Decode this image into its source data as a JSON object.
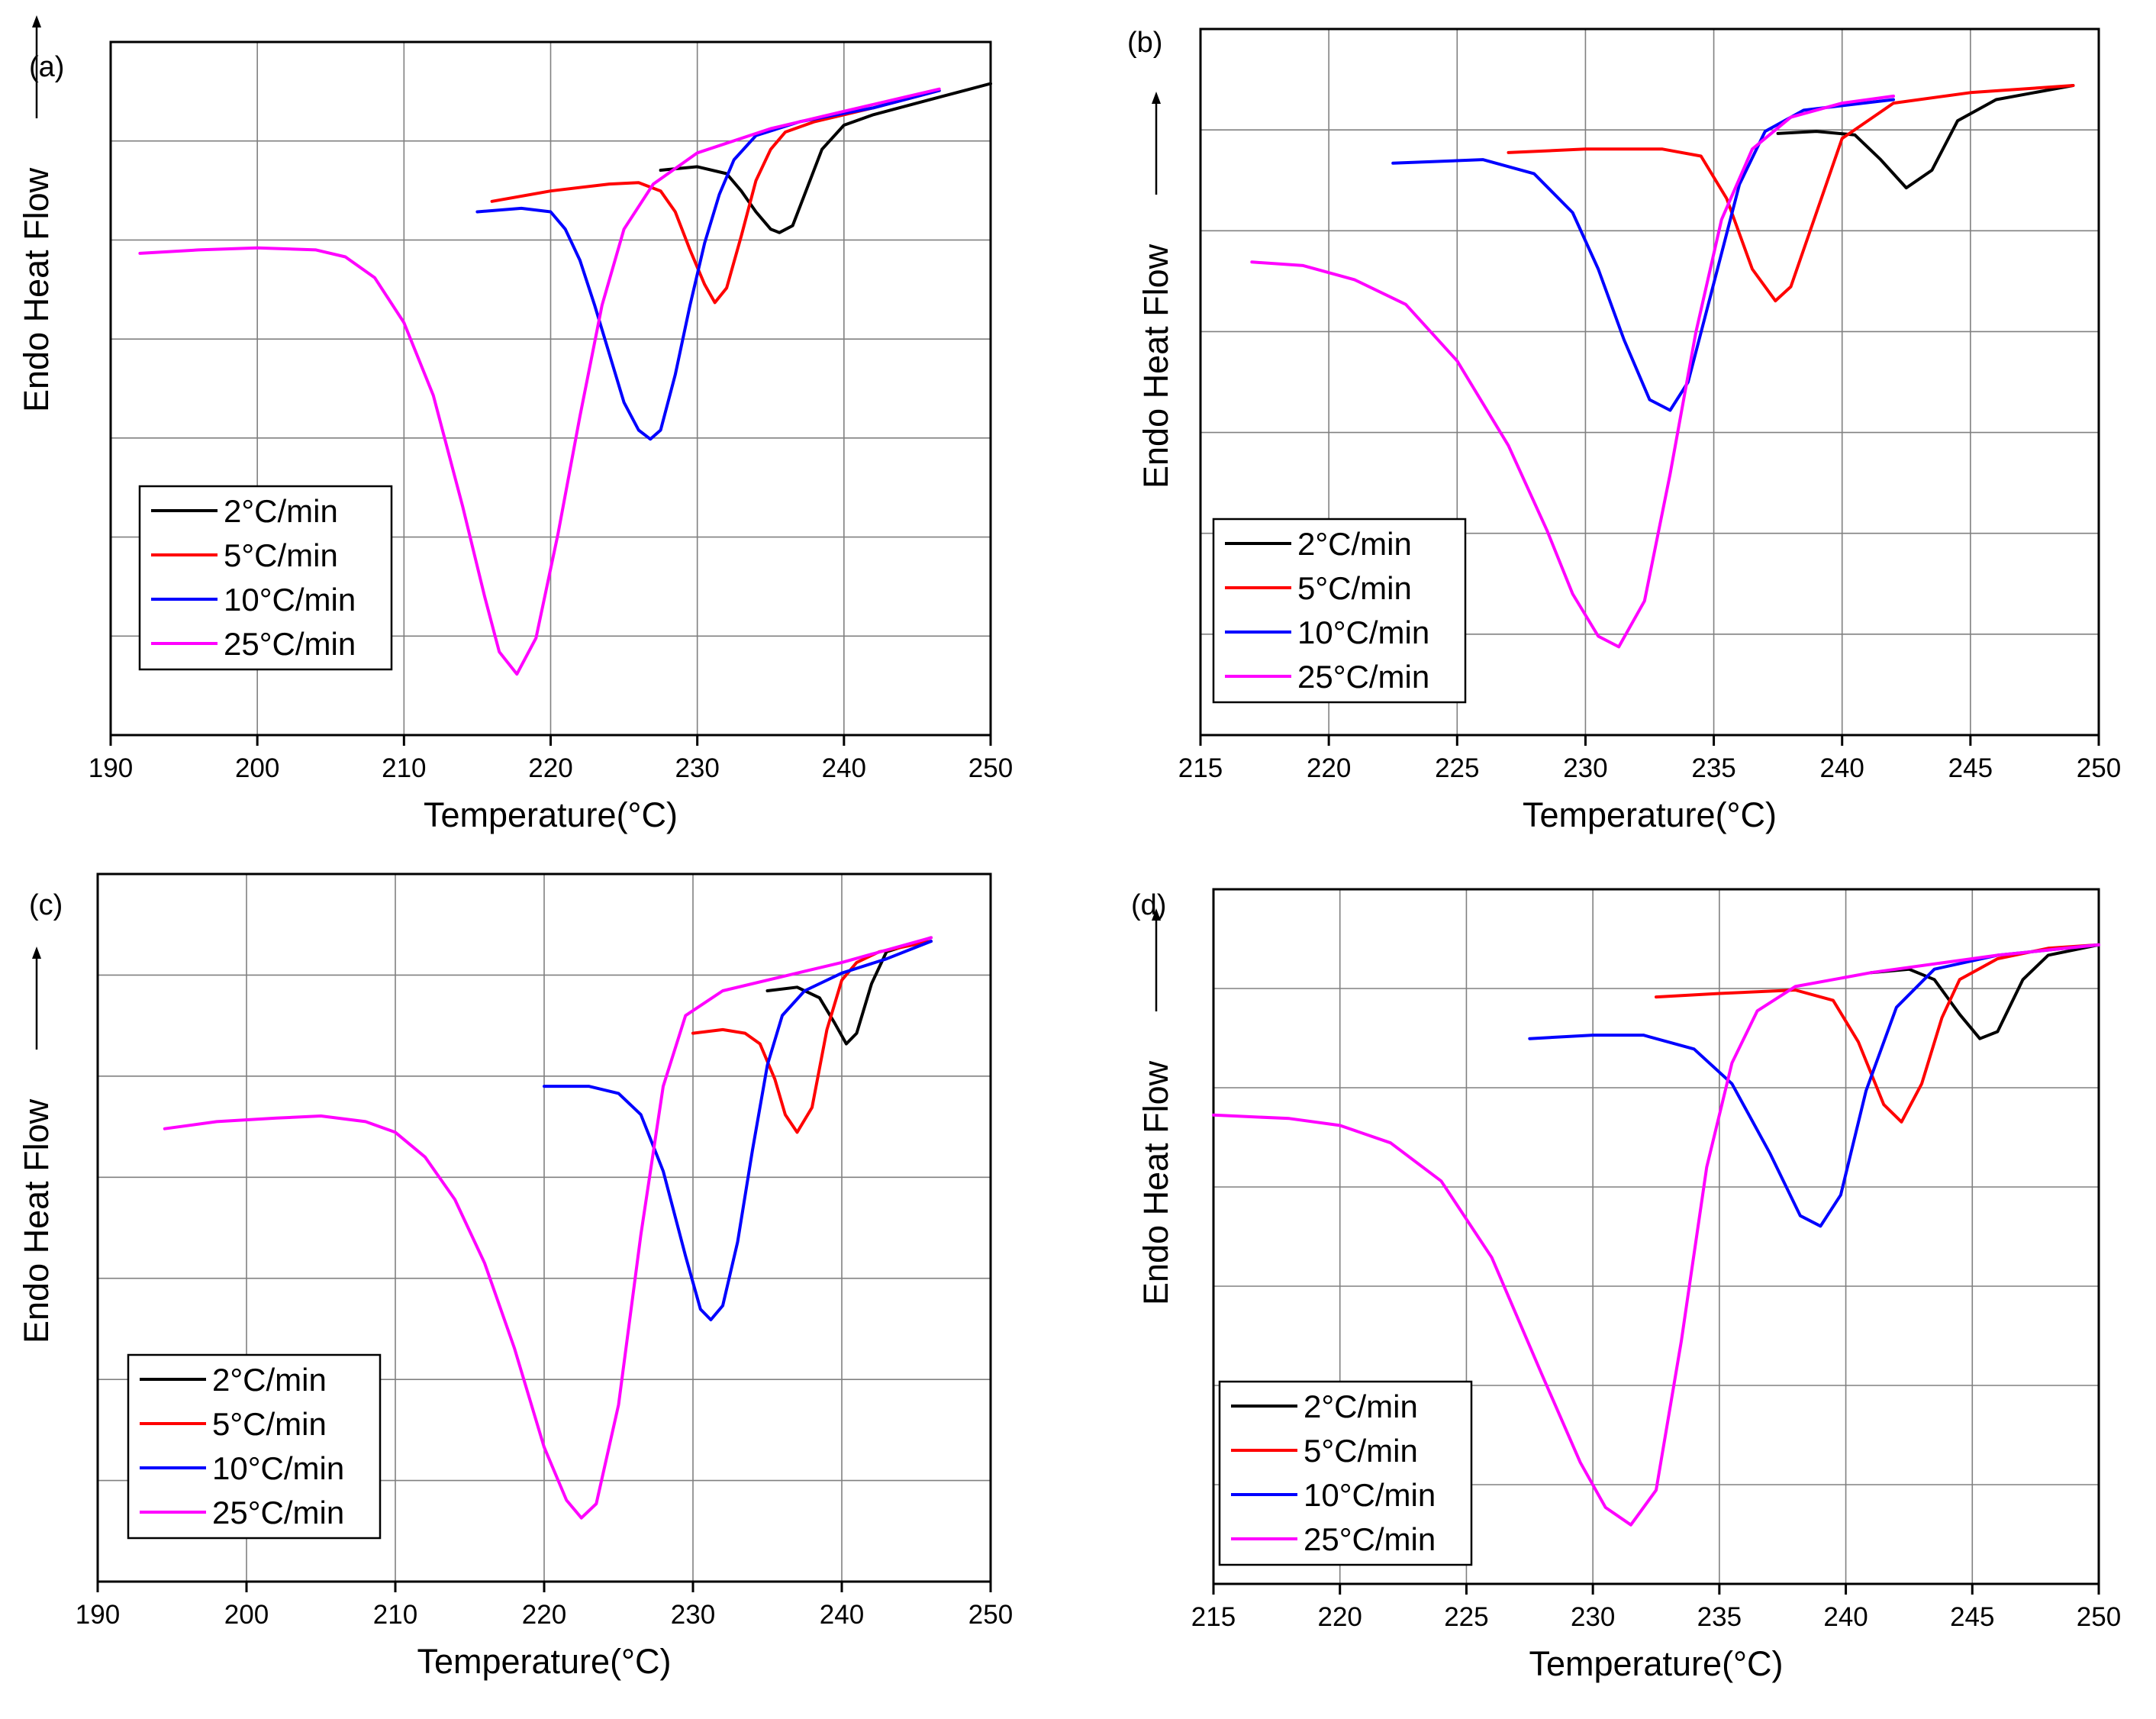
{
  "chart_data": [
    {
      "type": "line",
      "panel": "(a)",
      "xlabel": "Temperature(°C)",
      "ylabel": "Endo Heat Flow",
      "xlim": [
        190,
        250
      ],
      "ylim": [
        0,
        1
      ],
      "x_ticks": [
        190,
        200,
        210,
        220,
        230,
        240,
        250
      ],
      "grid": true,
      "legend_position": "bottom-left",
      "series": [
        {
          "name": "2°C/min",
          "color": "#000000",
          "x": [
            227.5,
            230,
            232,
            233,
            234,
            235,
            235.6,
            236.5,
            237.5,
            238.5,
            240,
            242,
            245,
            250
          ],
          "y": [
            0.815,
            0.82,
            0.81,
            0.785,
            0.755,
            0.73,
            0.725,
            0.735,
            0.79,
            0.845,
            0.88,
            0.895,
            0.912,
            0.94
          ]
        },
        {
          "name": "5°C/min",
          "color": "#ff0000",
          "x": [
            216,
            220,
            224,
            226,
            227.5,
            228.5,
            229.5,
            230.5,
            231.2,
            232,
            233,
            234,
            235,
            236,
            238,
            242,
            246.5
          ],
          "y": [
            0.77,
            0.785,
            0.795,
            0.797,
            0.785,
            0.755,
            0.7,
            0.65,
            0.624,
            0.645,
            0.72,
            0.8,
            0.845,
            0.87,
            0.885,
            0.905,
            0.93
          ]
        },
        {
          "name": "10°C/min",
          "color": "#0000ff",
          "x": [
            215,
            218,
            220,
            221,
            222,
            223,
            224,
            225,
            226,
            226.8,
            227.5,
            228.5,
            229.5,
            230.5,
            231.5,
            232.5,
            234,
            237,
            242,
            246.5
          ],
          "y": [
            0.755,
            0.76,
            0.755,
            0.73,
            0.685,
            0.62,
            0.55,
            0.48,
            0.44,
            0.427,
            0.44,
            0.52,
            0.62,
            0.71,
            0.78,
            0.83,
            0.865,
            0.885,
            0.905,
            0.93
          ]
        },
        {
          "name": "25°C/min",
          "color": "#ff00ff",
          "x": [
            192,
            196,
            200,
            204,
            206,
            208,
            210,
            212,
            214,
            215.5,
            216.5,
            217.7,
            219,
            220.5,
            222,
            223.5,
            225,
            227,
            230,
            235,
            240,
            246.5
          ],
          "y": [
            0.695,
            0.7,
            0.703,
            0.7,
            0.69,
            0.66,
            0.595,
            0.49,
            0.33,
            0.2,
            0.12,
            0.088,
            0.14,
            0.29,
            0.46,
            0.62,
            0.73,
            0.795,
            0.84,
            0.875,
            0.9,
            0.932
          ]
        }
      ]
    },
    {
      "type": "line",
      "panel": "(b)",
      "xlabel": "Temperature(°C)",
      "ylabel": "Endo Heat Flow",
      "xlim": [
        215,
        250
      ],
      "ylim": [
        0,
        1
      ],
      "x_ticks": [
        215,
        220,
        225,
        230,
        235,
        240,
        245,
        250
      ],
      "grid": true,
      "legend_position": "bottom-left",
      "series": [
        {
          "name": "2°C/min",
          "color": "#000000",
          "x": [
            237.5,
            239,
            240.5,
            241.5,
            242.5,
            243.5,
            244.5,
            246,
            249
          ],
          "y": [
            0.852,
            0.855,
            0.85,
            0.815,
            0.775,
            0.8,
            0.87,
            0.9,
            0.92
          ]
        },
        {
          "name": "5°C/min",
          "color": "#ff0000",
          "x": [
            227,
            230,
            233,
            234.5,
            235.5,
            236.5,
            237.4,
            238,
            239,
            240,
            242,
            245,
            249
          ],
          "y": [
            0.825,
            0.83,
            0.83,
            0.82,
            0.76,
            0.66,
            0.615,
            0.635,
            0.74,
            0.845,
            0.895,
            0.91,
            0.92
          ]
        },
        {
          "name": "10°C/min",
          "color": "#0000ff",
          "x": [
            222.5,
            226,
            228,
            229.5,
            230.5,
            231.5,
            232.5,
            233.3,
            234,
            235,
            236,
            237,
            238.5,
            242
          ],
          "y": [
            0.81,
            0.815,
            0.795,
            0.74,
            0.66,
            0.56,
            0.475,
            0.46,
            0.5,
            0.64,
            0.78,
            0.855,
            0.885,
            0.9
          ]
        },
        {
          "name": "25°C/min",
          "color": "#ff00ff",
          "x": [
            217,
            219,
            221,
            223,
            225,
            227,
            228.5,
            229.5,
            230.5,
            231.3,
            232.3,
            233.3,
            234.3,
            235.3,
            236.5,
            238,
            240,
            242
          ],
          "y": [
            0.67,
            0.665,
            0.645,
            0.61,
            0.53,
            0.41,
            0.29,
            0.2,
            0.14,
            0.125,
            0.19,
            0.37,
            0.57,
            0.73,
            0.83,
            0.875,
            0.895,
            0.905
          ]
        }
      ]
    },
    {
      "type": "line",
      "panel": "(c)",
      "xlabel": "Temperature(°C)",
      "ylabel": "Endo Heat Flow",
      "xlim": [
        190,
        250
      ],
      "ylim": [
        0,
        1
      ],
      "x_ticks": [
        190,
        200,
        210,
        220,
        230,
        240,
        250
      ],
      "grid": true,
      "legend_position": "bottom-left",
      "series": [
        {
          "name": "2°C/min",
          "color": "#000000",
          "x": [
            235,
            237,
            238.5,
            239.5,
            240.3,
            241,
            242,
            243,
            246
          ],
          "y": [
            0.835,
            0.84,
            0.825,
            0.79,
            0.76,
            0.775,
            0.845,
            0.89,
            0.91
          ]
        },
        {
          "name": "5°C/min",
          "color": "#ff0000",
          "x": [
            230,
            232,
            233.5,
            234.5,
            235.5,
            236.2,
            237,
            238,
            239,
            240,
            241,
            242.5,
            246
          ],
          "y": [
            0.775,
            0.78,
            0.775,
            0.76,
            0.71,
            0.66,
            0.635,
            0.67,
            0.78,
            0.85,
            0.875,
            0.89,
            0.905
          ]
        },
        {
          "name": "10°C/min",
          "color": "#0000ff",
          "x": [
            220,
            223,
            225,
            226.5,
            228,
            229.5,
            230.5,
            231.2,
            232,
            233,
            234,
            235,
            236,
            237.5,
            240,
            243,
            246
          ],
          "y": [
            0.7,
            0.7,
            0.69,
            0.66,
            0.58,
            0.46,
            0.385,
            0.37,
            0.39,
            0.48,
            0.61,
            0.73,
            0.8,
            0.835,
            0.86,
            0.88,
            0.905
          ]
        },
        {
          "name": "25°C/min",
          "color": "#ff00ff",
          "x": [
            194.5,
            198,
            202,
            205,
            208,
            210,
            212,
            214,
            216,
            218,
            220,
            221.5,
            222.5,
            223.5,
            225,
            226.5,
            228,
            229.5,
            232,
            236,
            240,
            246
          ],
          "y": [
            0.64,
            0.65,
            0.655,
            0.658,
            0.65,
            0.635,
            0.6,
            0.54,
            0.45,
            0.33,
            0.19,
            0.115,
            0.09,
            0.11,
            0.25,
            0.49,
            0.7,
            0.8,
            0.835,
            0.855,
            0.875,
            0.91
          ]
        }
      ]
    },
    {
      "type": "line",
      "panel": "(d)",
      "xlabel": "Temperature(°C)",
      "ylabel": "Endo Heat Flow",
      "xlim": [
        215,
        250
      ],
      "ylim": [
        0,
        1
      ],
      "x_ticks": [
        215,
        220,
        225,
        230,
        235,
        240,
        245,
        250
      ],
      "grid": true,
      "legend_position": "bottom-left",
      "series": [
        {
          "name": "2°C/min",
          "color": "#000000",
          "x": [
            241,
            242.5,
            243.5,
            244.5,
            245.3,
            246,
            247,
            248,
            250
          ],
          "y": [
            0.88,
            0.885,
            0.87,
            0.82,
            0.785,
            0.795,
            0.87,
            0.905,
            0.92
          ]
        },
        {
          "name": "5°C/min",
          "color": "#ff0000",
          "x": [
            232.5,
            235,
            238,
            239.5,
            240.5,
            241.5,
            242.2,
            243,
            243.8,
            244.5,
            246,
            248,
            250
          ],
          "y": [
            0.845,
            0.85,
            0.855,
            0.84,
            0.78,
            0.69,
            0.665,
            0.72,
            0.815,
            0.87,
            0.9,
            0.915,
            0.92
          ]
        },
        {
          "name": "10°C/min",
          "color": "#0000ff",
          "x": [
            227.5,
            230,
            232,
            234,
            235.5,
            237,
            238.2,
            239,
            239.8,
            240.8,
            242,
            243.5,
            246,
            250
          ],
          "y": [
            0.785,
            0.79,
            0.79,
            0.77,
            0.72,
            0.62,
            0.53,
            0.515,
            0.56,
            0.71,
            0.83,
            0.885,
            0.905,
            0.92
          ]
        },
        {
          "name": "25°C/min",
          "color": "#ff00ff",
          "x": [
            215,
            218,
            220,
            222,
            224,
            226,
            228,
            229.5,
            230.5,
            231.5,
            232.5,
            233.5,
            234.5,
            235.5,
            236.5,
            238,
            241,
            246,
            250
          ],
          "y": [
            0.675,
            0.67,
            0.66,
            0.635,
            0.58,
            0.47,
            0.3,
            0.175,
            0.11,
            0.085,
            0.135,
            0.35,
            0.6,
            0.75,
            0.825,
            0.86,
            0.88,
            0.905,
            0.92
          ]
        }
      ]
    }
  ]
}
